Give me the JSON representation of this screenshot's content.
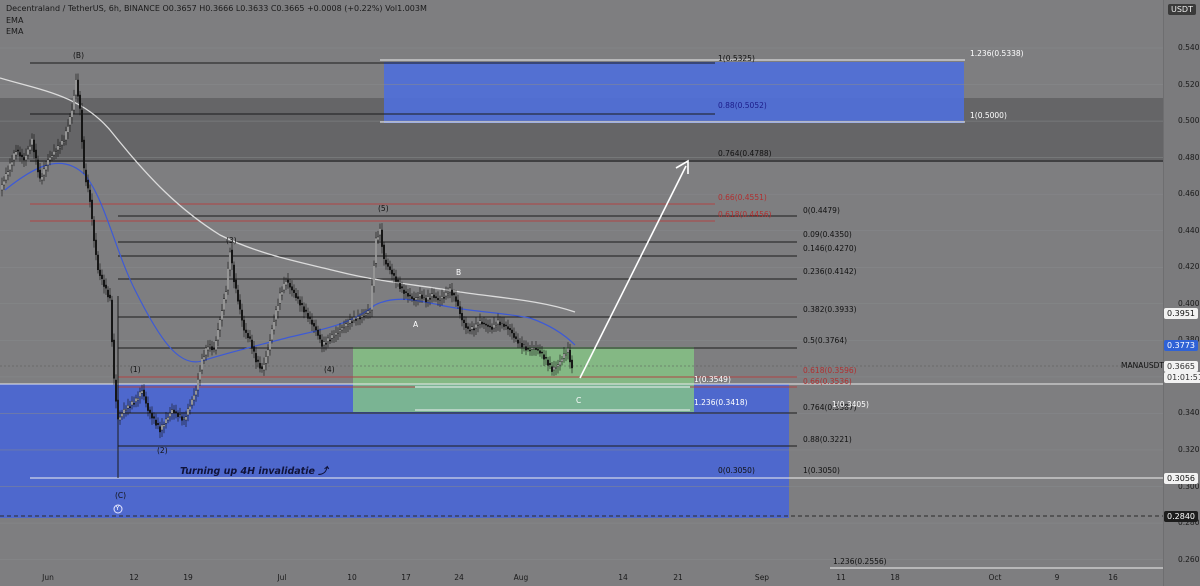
{
  "header": {
    "line1": "Decentraland / TetherUS, 6h, BINANCE  O0.3657  H0.3666  L0.3633  C0.3665  +0.0008 (+0.22%)  Vol1.003M",
    "ema1": "EMA",
    "ema2": "EMA"
  },
  "price_axis": {
    "currency": "USDT",
    "ticks": [
      "0.5400",
      "0.5200",
      "0.5000",
      "0.4800",
      "0.4600",
      "0.4400",
      "0.4200",
      "0.4000",
      "0.3800",
      "0.3600",
      "0.3400",
      "0.3200",
      "0.3000",
      "0.2800",
      "0.2600"
    ],
    "badges": {
      "level_3951": "0.3951",
      "level_3773": "0.3773",
      "current_price": "0.3665",
      "countdown": "01:01:51",
      "level_3056": "0.3056",
      "level_2840": "0.2840"
    },
    "symbol_tag": "MANAUSDT"
  },
  "time_axis": {
    "labels": [
      "Jun",
      "12",
      "19",
      "Jul",
      "10",
      "17",
      "24",
      "Aug",
      "14",
      "21",
      "Sep",
      "11",
      "18",
      "Oct",
      "9",
      "16"
    ]
  },
  "fib_labels": {
    "top_1": "1(0.5325)",
    "top_1236": "1.236(0.5338)",
    "top_088": "0.88(0.5052)",
    "top_1_05": "1(0.5000)",
    "top_0764": "0.764(0.4788)",
    "red_066": "0.66(0.4551)",
    "red_0618": "0.618(0.4456)",
    "r0": "0(0.4479)",
    "r009": "0.09(0.4350)",
    "r0146": "0.146(0.4270)",
    "r0236": "0.236(0.4142)",
    "r0382": "0.382(0.3933)",
    "r05": "0.5(0.3764)",
    "r0618": "0.618(0.3596)",
    "r066": "0.66(0.3536)",
    "g1": "1(0.3549)",
    "g1236": "1.236(0.3418)",
    "r0764": "0.764(0.3387)",
    "r1_3405": "1(0.3405)",
    "r088": "0.88(0.3221)",
    "b0": "0(0.3050)",
    "b1": "1(0.3050)",
    "b1236": "1.236(0.2556)"
  },
  "wave_labels": {
    "B_top": "(B)",
    "w1": "(1)",
    "w2": "(2)",
    "w3": "(3)",
    "w4": "(4)",
    "w5": "(5)",
    "A": "A",
    "B": "B",
    "C": "C",
    "C_paren": "(C)",
    "Y": "Y"
  },
  "annotation": "Turning up 4H invalidatie ⤴",
  "colors": {
    "background": "#7e7e80",
    "blue_zone": "#4f6fd9",
    "green_zone": "#7fbf7a",
    "dark_zone": "#5d5d60",
    "red_fib": "#b04444",
    "ema_blue": "#3d5ad6",
    "ema_white": "#d8d8d8",
    "arrow": "#ffffff"
  }
}
